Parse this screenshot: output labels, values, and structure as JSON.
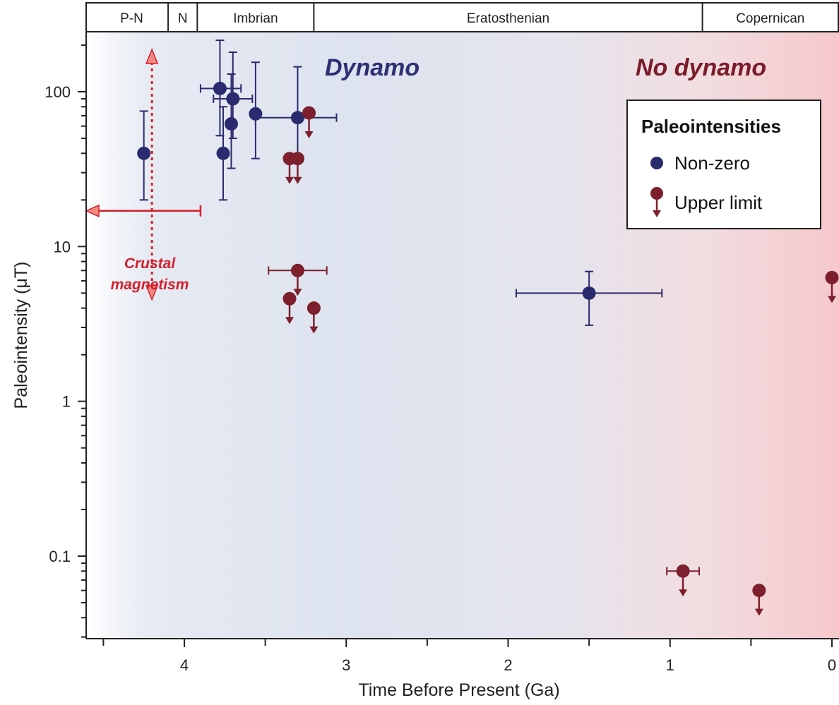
{
  "chart_data": {
    "type": "scatter",
    "xlabel": "Time Before Present (Ga)",
    "ylabel": "Paleointensity (μT)",
    "x_reversed": true,
    "y_scale": "log",
    "xlim": [
      4.55,
      -0.05
    ],
    "ylim": [
      0.03,
      250
    ],
    "x_ticks": [
      {
        "value": 4,
        "label": "4"
      },
      {
        "value": 3,
        "label": "3"
      },
      {
        "value": 2,
        "label": "2"
      },
      {
        "value": 1,
        "label": "1"
      },
      {
        "value": 0,
        "label": "0"
      }
    ],
    "y_ticks": [
      {
        "value": 100,
        "label": "100"
      },
      {
        "value": 10,
        "label": "10"
      },
      {
        "value": 1,
        "label": "1"
      },
      {
        "value": 0.1,
        "label": "0.1"
      }
    ],
    "eras": [
      {
        "label": "P-N",
        "from": 4.55,
        "to": 4.1
      },
      {
        "label": "N",
        "from": 4.1,
        "to": 3.92
      },
      {
        "label": "Imbrian",
        "from": 3.92,
        "to": 3.2
      },
      {
        "label": "Eratosthenian",
        "from": 3.2,
        "to": 0.8
      },
      {
        "label": "Copernican",
        "from": 0.8,
        "to": -0.05
      }
    ],
    "regions": [
      {
        "label": "Dynamo",
        "color": "#2e2f73"
      },
      {
        "label": "No dynamo",
        "color": "#7a1c2a"
      }
    ],
    "series": [
      {
        "name": "Non-zero",
        "color": "#2a2a6e",
        "points": [
          {
            "x": 4.25,
            "y": 40,
            "y_low": 20,
            "y_high": 75
          },
          {
            "x": 3.78,
            "y": 105,
            "y_low": 52,
            "y_high": 215,
            "x_low": 3.65,
            "x_high": 3.9
          },
          {
            "x": 3.76,
            "y": 40,
            "y_low": 20,
            "y_high": 80
          },
          {
            "x": 3.7,
            "y": 90,
            "y_low": 50,
            "y_high": 180,
            "x_low": 3.58,
            "x_high": 3.82
          },
          {
            "x": 3.71,
            "y": 62,
            "y_low": 32,
            "y_high": 130
          },
          {
            "x": 3.56,
            "y": 72,
            "y_low": 37,
            "y_high": 155
          },
          {
            "x": 3.3,
            "y": 68,
            "y_low": 35,
            "y_high": 145,
            "x_low": 3.06,
            "x_high": 3.56
          },
          {
            "x": 1.5,
            "y": 5,
            "y_low": 3.1,
            "y_high": 6.9,
            "x_low": 1.05,
            "x_high": 1.95
          }
        ]
      },
      {
        "name": "Upper limit",
        "color": "#7d1f2c",
        "points": [
          {
            "x": 3.23,
            "y": 73
          },
          {
            "x": 3.35,
            "y": 37
          },
          {
            "x": 3.3,
            "y": 37
          },
          {
            "x": 3.3,
            "y": 7,
            "x_low": 3.12,
            "x_high": 3.48
          },
          {
            "x": 3.35,
            "y": 4.6
          },
          {
            "x": 3.2,
            "y": 4
          },
          {
            "x": 0.92,
            "y": 0.08,
            "x_low": 0.82,
            "x_high": 1.02
          },
          {
            "x": 0.45,
            "y": 0.06
          },
          {
            "x": 0,
            "y": 6.3
          }
        ]
      }
    ],
    "annotation": {
      "label": [
        "Crustal",
        "magnetism"
      ],
      "color": "#d4202c",
      "x_range": [
        4.65,
        3.9
      ],
      "y_value": 17,
      "x_value": 4.2,
      "y_range": [
        3.6,
        180
      ]
    },
    "legend": {
      "title": "Paleointensities",
      "position": "top-right"
    },
    "background_gradient": [
      "#f4f6fb",
      "#dde3f0",
      "#f6d9dc",
      "#f6c9cd"
    ]
  }
}
